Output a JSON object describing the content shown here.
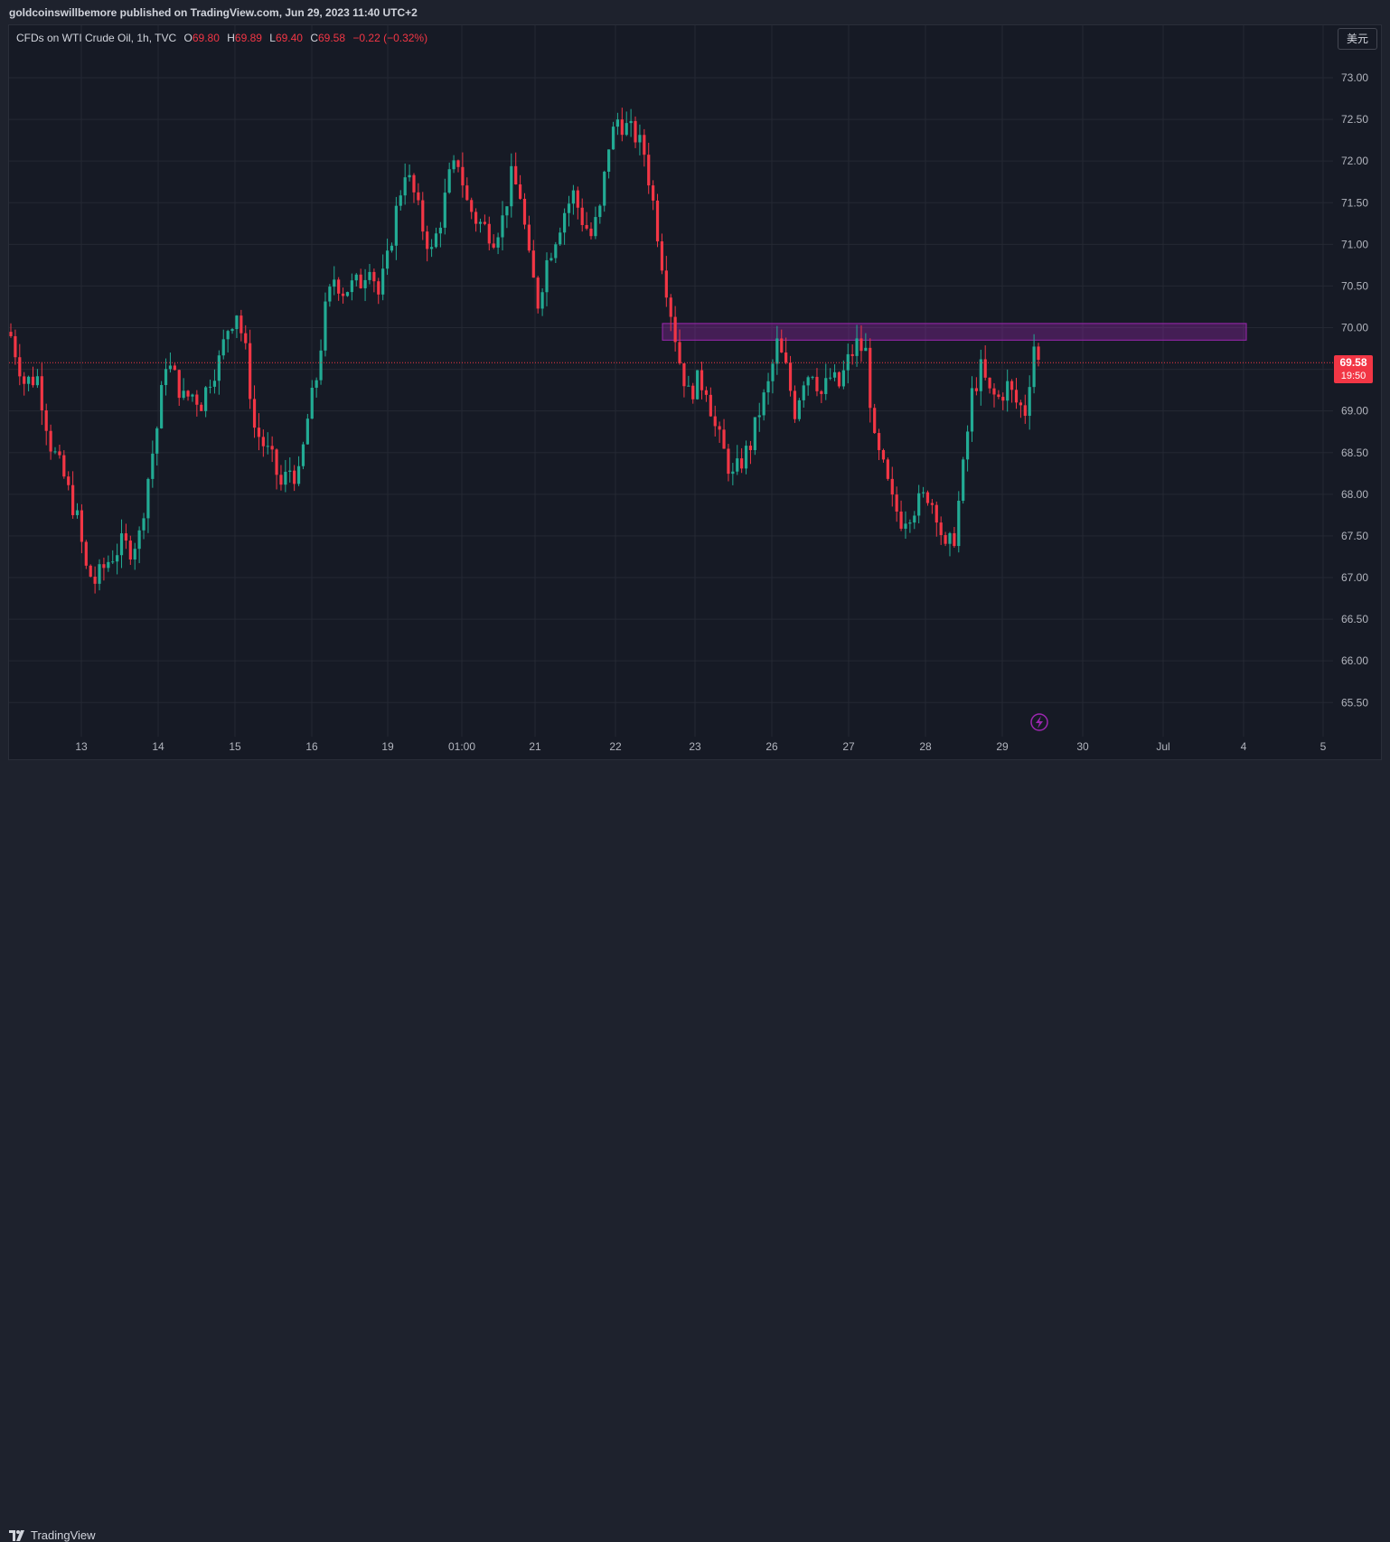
{
  "header": {
    "published": "goldcoinswillbemore published on TradingView.com, Jun 29, 2023 11:40 UTC+2"
  },
  "legend": {
    "symbol": "CFDs on WTI Crude Oil, 1h, TVC",
    "open_label": "O",
    "open": "69.80",
    "high_label": "H",
    "high": "69.89",
    "low_label": "L",
    "low": "69.40",
    "close_label": "C",
    "close": "69.58",
    "change": "−0.22 (−0.32%)"
  },
  "currency_button": "美元",
  "last_price": {
    "price": "69.58",
    "countdown": "19:50"
  },
  "footer": {
    "brand": "TradingView"
  },
  "colors": {
    "up": "#22ab94",
    "down": "#f23645",
    "zone": "#9c27b0",
    "background": "#161a25",
    "grid": "#242833"
  },
  "chart_data": {
    "type": "candlestick",
    "title": "CFDs on WTI Crude Oil, 1h, TVC",
    "ylim": [
      65.25,
      73.35
    ],
    "y_ticks": [
      "73.00",
      "72.50",
      "72.00",
      "71.50",
      "71.00",
      "70.50",
      "70.00",
      "69.50",
      "69.00",
      "68.50",
      "68.00",
      "67.50",
      "67.00",
      "66.50",
      "66.00",
      "65.50"
    ],
    "x_ticks": [
      "13",
      "14",
      "15",
      "16",
      "19",
      "01:00",
      "21",
      "22",
      "23",
      "26",
      "27",
      "28",
      "29",
      "30",
      "Jul",
      "4",
      "5"
    ],
    "last_price_line": 69.58,
    "resistance_zone": {
      "low": 69.85,
      "high": 70.05
    },
    "close_path": [
      [
        0,
        69.9
      ],
      [
        3,
        69.35
      ],
      [
        6,
        69.4
      ],
      [
        9,
        68.6
      ],
      [
        12,
        68.2
      ],
      [
        15,
        67.7
      ],
      [
        17,
        67.1
      ],
      [
        19,
        66.95
      ],
      [
        22,
        67.2
      ],
      [
        25,
        67.4
      ],
      [
        27,
        67.35
      ],
      [
        29,
        67.5
      ],
      [
        31,
        68.2
      ],
      [
        33,
        68.8
      ],
      [
        35,
        69.6
      ],
      [
        37,
        69.4
      ],
      [
        39,
        69.15
      ],
      [
        41,
        69.2
      ],
      [
        43,
        69.1
      ],
      [
        45,
        69.4
      ],
      [
        47,
        69.6
      ],
      [
        49,
        70.0
      ],
      [
        51,
        70.2
      ],
      [
        53,
        69.7
      ],
      [
        55,
        68.8
      ],
      [
        57,
        68.6
      ],
      [
        59,
        68.4
      ],
      [
        61,
        68.1
      ],
      [
        63,
        68.3
      ],
      [
        65,
        68.2
      ],
      [
        67,
        68.9
      ],
      [
        69,
        69.4
      ],
      [
        71,
        70.2
      ],
      [
        73,
        70.6
      ],
      [
        75,
        70.45
      ],
      [
        77,
        70.5
      ],
      [
        79,
        70.55
      ],
      [
        81,
        70.8
      ],
      [
        83,
        70.4
      ],
      [
        85,
        70.8
      ],
      [
        87,
        71.4
      ],
      [
        89,
        71.9
      ],
      [
        91,
        71.6
      ],
      [
        93,
        71.2
      ],
      [
        95,
        70.9
      ],
      [
        97,
        71.3
      ],
      [
        99,
        71.8
      ],
      [
        101,
        72.0
      ],
      [
        103,
        71.5
      ],
      [
        105,
        71.3
      ],
      [
        107,
        71.2
      ],
      [
        109,
        71.1
      ],
      [
        111,
        71.3
      ],
      [
        113,
        71.8
      ],
      [
        115,
        71.6
      ],
      [
        117,
        70.8
      ],
      [
        119,
        70.3
      ],
      [
        121,
        70.8
      ],
      [
        123,
        71.1
      ],
      [
        125,
        71.4
      ],
      [
        127,
        71.6
      ],
      [
        129,
        71.3
      ],
      [
        131,
        71.1
      ],
      [
        133,
        71.4
      ],
      [
        135,
        72.2
      ],
      [
        137,
        72.5
      ],
      [
        139,
        72.4
      ],
      [
        141,
        72.3
      ],
      [
        143,
        72.1
      ],
      [
        145,
        71.5
      ],
      [
        147,
        70.8
      ],
      [
        149,
        70.2
      ],
      [
        151,
        69.6
      ],
      [
        153,
        69.2
      ],
      [
        155,
        69.35
      ],
      [
        157,
        69.3
      ],
      [
        159,
        68.8
      ],
      [
        161,
        68.5
      ],
      [
        163,
        68.2
      ],
      [
        165,
        68.4
      ],
      [
        167,
        68.6
      ],
      [
        169,
        69.0
      ],
      [
        171,
        69.3
      ],
      [
        173,
        69.8
      ],
      [
        175,
        69.5
      ],
      [
        177,
        69.0
      ],
      [
        179,
        69.4
      ],
      [
        181,
        69.5
      ],
      [
        183,
        69.2
      ],
      [
        185,
        69.4
      ],
      [
        187,
        69.3
      ],
      [
        189,
        69.6
      ],
      [
        191,
        69.8
      ],
      [
        193,
        69.7
      ],
      [
        195,
        68.6
      ],
      [
        197,
        68.3
      ],
      [
        199,
        67.9
      ],
      [
        201,
        67.7
      ],
      [
        203,
        67.8
      ],
      [
        205,
        67.9
      ],
      [
        207,
        68.0
      ],
      [
        209,
        67.8
      ],
      [
        211,
        67.3
      ],
      [
        213,
        67.5
      ],
      [
        215,
        68.3
      ],
      [
        217,
        69.2
      ],
      [
        219,
        69.5
      ],
      [
        221,
        69.2
      ],
      [
        223,
        69.15
      ],
      [
        225,
        69.3
      ],
      [
        227,
        69.1
      ],
      [
        229,
        69.0
      ],
      [
        231,
        69.8
      ],
      [
        232,
        69.58
      ]
    ]
  }
}
